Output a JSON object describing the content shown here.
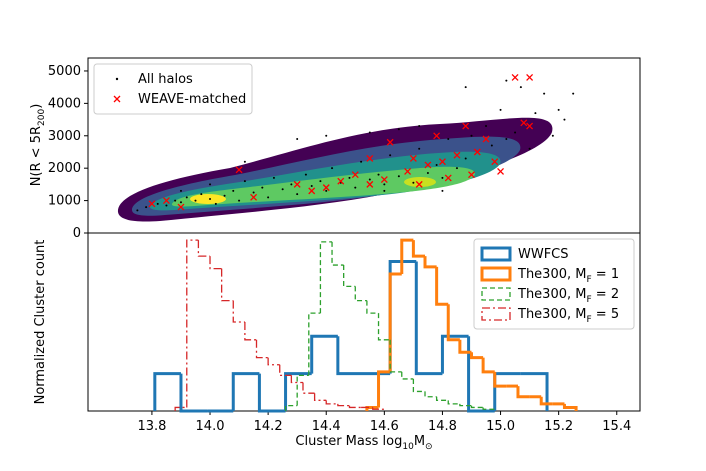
{
  "chart_data": [
    {
      "type": "scatter",
      "ylabel": "N(R < 5R_{200})",
      "xlim": [
        13.58,
        15.48
      ],
      "ylim": [
        0,
        5400
      ],
      "yticks": [
        0,
        1000,
        2000,
        3000,
        4000,
        5000
      ],
      "legend": "upper left",
      "series": [
        {
          "name": "All halos",
          "color": "#000000",
          "marker": "dot",
          "x": [
            13.75,
            13.78,
            13.82,
            13.85,
            13.88,
            13.9,
            13.92,
            13.95,
            13.97,
            14.0,
            14.02,
            14.05,
            14.08,
            14.1,
            14.12,
            14.15,
            14.18,
            14.2,
            14.22,
            14.25,
            14.28,
            14.3,
            14.33,
            14.35,
            14.38,
            14.4,
            14.42,
            14.45,
            14.48,
            14.5,
            14.52,
            14.55,
            14.58,
            14.6,
            14.62,
            14.65,
            14.68,
            14.7,
            14.72,
            14.75,
            14.78,
            14.8,
            14.82,
            14.85,
            14.88,
            14.9,
            14.92,
            14.95,
            14.97,
            15.0,
            15.02,
            15.05,
            15.07,
            15.1,
            15.12,
            15.15,
            15.18,
            15.2,
            15.22,
            15.25,
            14.55,
            14.65,
            14.72,
            14.3,
            14.4,
            14.12,
            14.0,
            13.9,
            14.6,
            14.8,
            15.02,
            14.88
          ],
          "values": [
            700,
            800,
            900,
            850,
            1000,
            950,
            1100,
            1000,
            1200,
            1050,
            900,
            1150,
            1300,
            1000,
            1600,
            1250,
            1400,
            1100,
            1700,
            1350,
            1500,
            1200,
            1800,
            1450,
            1600,
            1300,
            2000,
            1550,
            1700,
            1400,
            2200,
            1650,
            1800,
            1500,
            2400,
            1750,
            1900,
            1550,
            2600,
            1850,
            2100,
            1700,
            2900,
            2000,
            2300,
            3000,
            2500,
            3300,
            2700,
            3800,
            2900,
            3100,
            4500,
            2600,
            3700,
            4300,
            3000,
            3800,
            3500,
            4300,
            3100,
            3200,
            3300,
            2900,
            3000,
            2200,
            1500,
            1300,
            1300,
            1300,
            4700,
            4500
          ]
        },
        {
          "name": "WEAVE-matched",
          "color": "#ff0000",
          "marker": "x",
          "x": [
            13.8,
            13.85,
            13.9,
            14.1,
            14.15,
            14.3,
            14.35,
            14.4,
            14.45,
            14.5,
            14.55,
            14.55,
            14.6,
            14.62,
            14.68,
            14.7,
            14.72,
            14.75,
            14.78,
            14.8,
            14.82,
            14.85,
            14.88,
            14.9,
            14.92,
            14.95,
            14.98,
            15.0,
            15.05,
            15.1,
            15.08,
            15.1
          ],
          "values": [
            900,
            1000,
            800,
            1950,
            1100,
            1500,
            1300,
            1400,
            1600,
            1800,
            1500,
            2300,
            1650,
            2800,
            1900,
            2300,
            1500,
            2100,
            3000,
            2200,
            1700,
            2400,
            3300,
            1800,
            2500,
            2900,
            2200,
            1900,
            4800,
            4800,
            3400,
            3300
          ]
        }
      ]
    },
    {
      "type": "histogram",
      "xlabel": "Cluster Mass log_{10}M_{⊙}",
      "ylabel": "Normalized Cluster count",
      "xlim": [
        13.58,
        15.48
      ],
      "ylim": [
        0,
        1
      ],
      "xticks": [
        13.8,
        {
          "value": 14.0,
          "label": "14.0"
        },
        14.2,
        14.4,
        14.6,
        14.8,
        {
          "value": 15.0,
          "label": "15.0"
        },
        15.2,
        15.4
      ],
      "legend": "upper right",
      "series": [
        {
          "name": "WWFCS",
          "color": "#1f77b4",
          "linestyle": "solid",
          "width": 3,
          "bins": [
            13.81,
            13.9,
            13.99,
            14.08,
            14.17,
            14.26,
            14.35,
            14.44,
            14.53,
            14.62,
            14.71,
            14.8,
            14.89,
            14.98,
            15.07,
            15.16
          ],
          "values": [
            0.21,
            0,
            0,
            0.21,
            0,
            0.21,
            0.42,
            0.21,
            0.21,
            0.84,
            0.21,
            0.42,
            0,
            0.21,
            0.21
          ]
        },
        {
          "name": "The300, M_{F} = 1",
          "color": "#ff7f0e",
          "linestyle": "solid",
          "width": 3,
          "bins": [
            14.54,
            14.58,
            14.62,
            14.66,
            14.7,
            14.74,
            14.78,
            14.82,
            14.86,
            14.9,
            14.94,
            14.98,
            15.02,
            15.06,
            15.1,
            15.14,
            15.18,
            15.22,
            15.26
          ],
          "values": [
            0.02,
            0.22,
            0.77,
            0.96,
            0.87,
            0.81,
            0.6,
            0.4,
            0.33,
            0.3,
            0.22,
            0.14,
            0.14,
            0.08,
            0.08,
            0.04,
            0.04,
            0.02
          ]
        },
        {
          "name": "The300, M_{F} = 2",
          "color": "#2ca02c",
          "linestyle": "dashed",
          "width": 1.3,
          "bins": [
            14.26,
            14.3,
            14.34,
            14.38,
            14.42,
            14.46,
            14.5,
            14.54,
            14.58,
            14.62,
            14.66,
            14.7,
            14.74,
            14.78,
            14.82,
            14.86,
            14.9,
            14.94,
            14.98
          ],
          "values": [
            0.03,
            0.2,
            0.55,
            0.95,
            0.82,
            0.7,
            0.62,
            0.55,
            0.4,
            0.22,
            0.18,
            0.11,
            0.08,
            0.06,
            0.04,
            0.03,
            0.02,
            0.01
          ]
        },
        {
          "name": "The300, M_{F} = 5",
          "color": "#d62728",
          "linestyle": "dashdot",
          "width": 1.3,
          "bins": [
            13.88,
            13.92,
            13.96,
            14.0,
            14.04,
            14.08,
            14.12,
            14.16,
            14.2,
            14.24,
            14.28,
            14.32,
            14.36,
            14.4,
            14.44,
            14.48,
            14.52,
            14.56,
            14.6
          ],
          "values": [
            0.02,
            0.96,
            0.87,
            0.8,
            0.62,
            0.5,
            0.4,
            0.3,
            0.26,
            0.2,
            0.16,
            0.1,
            0.06,
            0.04,
            0.03,
            0.02,
            0.02,
            0.01
          ]
        }
      ]
    }
  ]
}
